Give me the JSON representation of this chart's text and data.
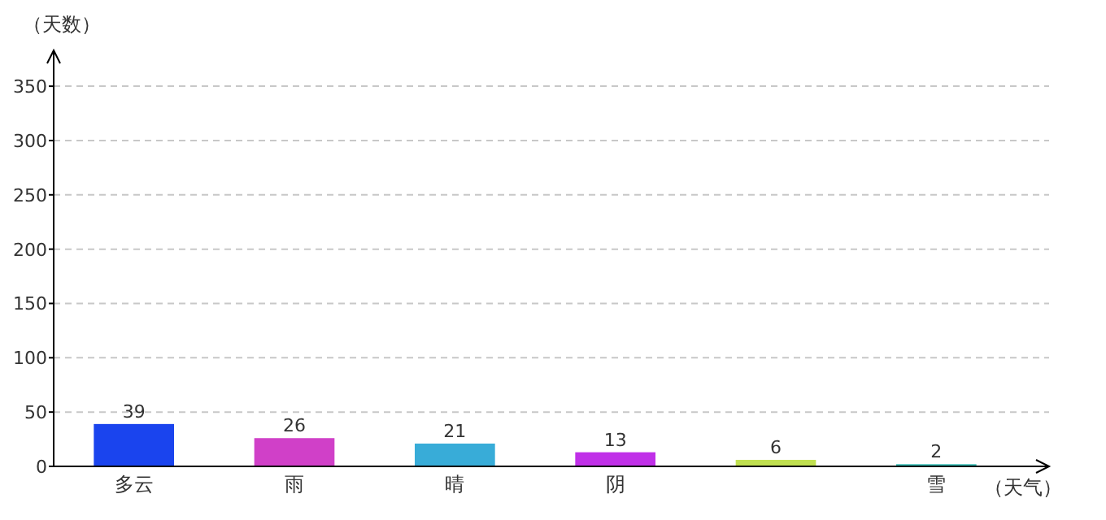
{
  "chart_data": {
    "type": "bar",
    "xlabel": "（天气）",
    "ylabel": "（天数）",
    "categories": [
      "多云",
      "雨",
      "晴",
      "阴",
      null,
      "雪"
    ],
    "values": [
      39,
      26,
      21,
      13,
      6,
      2
    ],
    "colors": [
      "#1a44ee",
      "#d040c8",
      "#38acd8",
      "#c030e8",
      "#c0e050",
      "#30b8b0"
    ],
    "ylim": [
      0,
      380
    ],
    "yticks": [
      0,
      50,
      100,
      150,
      200,
      250,
      300,
      350
    ],
    "grid": "y",
    "data_labels": true
  }
}
